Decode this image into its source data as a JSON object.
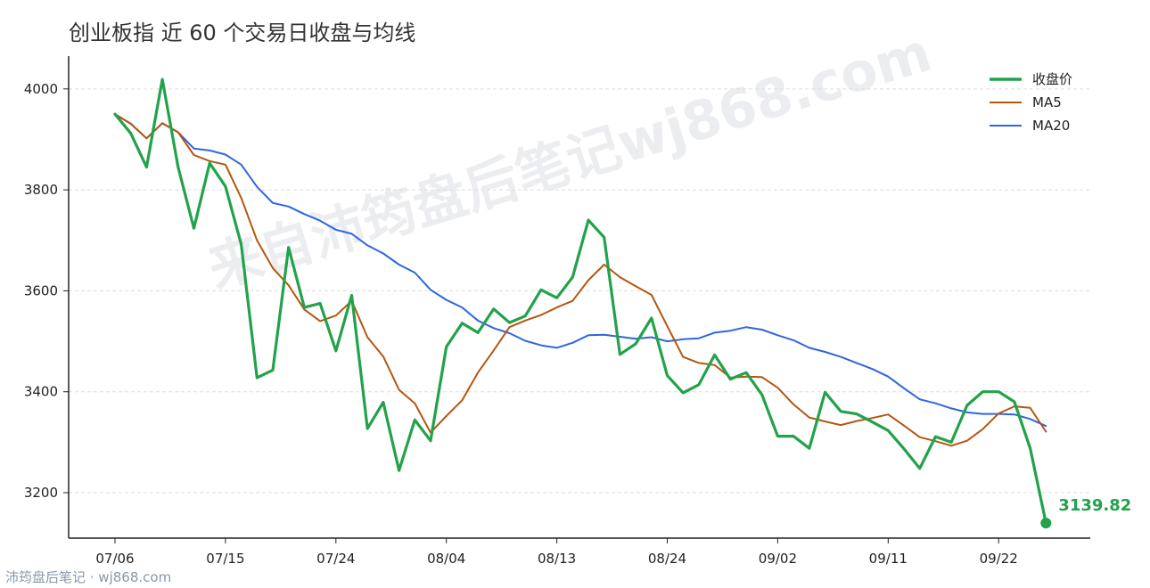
{
  "colors": {
    "close": "#22a24a",
    "ma5": "#b5560f",
    "ma20": "#2f66dd"
  },
  "watermark": "来自沛筠盘后笔记wj868.com",
  "credit": "沛筠盘后笔记 · wj868.com",
  "chart_data": {
    "type": "line",
    "title": "创业板指 近 60 个交易日收盘与均线",
    "xlabel": "",
    "ylabel": "",
    "ylim": [
      3110,
      4065
    ],
    "yticks": [
      3200,
      3400,
      3600,
      3800,
      4000
    ],
    "xtick_labels": [
      "07/06",
      "07/15",
      "07/24",
      "08/04",
      "08/13",
      "08/24",
      "09/02",
      "09/11",
      "09/22"
    ],
    "xtick_index": [
      0,
      7,
      14,
      21,
      28,
      35,
      42,
      49,
      56
    ],
    "grid": "horizontal",
    "legend_position": "top-right",
    "last_value_label": "3139.82",
    "series": [
      {
        "name": "收盘价",
        "key": "close",
        "values": [
          3950,
          3912,
          3845,
          4019,
          3845,
          3724,
          3853,
          3807,
          3692,
          3428,
          3443,
          3686,
          3567,
          3575,
          3481,
          3591,
          3327,
          3379,
          3244,
          3344,
          3303,
          3489,
          3536,
          3517,
          3564,
          3537,
          3550,
          3602,
          3586,
          3627,
          3740,
          3706,
          3474,
          3495,
          3546,
          3432,
          3398,
          3414,
          3473,
          3425,
          3438,
          3394,
          3312,
          3312,
          3288,
          3399,
          3361,
          3356,
          3340,
          3323,
          3287,
          3248,
          3311,
          3300,
          3373,
          3400,
          3400,
          3380,
          3288,
          3139.82
        ]
      },
      {
        "name": "MA5",
        "key": "ma5",
        "values": [
          3950,
          3931,
          3902,
          3932,
          3914,
          3869,
          3857,
          3850,
          3784,
          3700,
          3645,
          3611,
          3563,
          3540,
          3551,
          3580,
          3508,
          3470,
          3404,
          3377,
          3319,
          3352,
          3383,
          3438,
          3482,
          3528,
          3541,
          3552,
          3567,
          3580,
          3621,
          3652,
          3627,
          3609,
          3592,
          3530,
          3469,
          3457,
          3453,
          3428,
          3430,
          3429,
          3408,
          3375,
          3349,
          3341,
          3334,
          3342,
          3348,
          3355,
          3333,
          3310,
          3302,
          3293,
          3303,
          3326,
          3357,
          3371,
          3368,
          3321
        ]
      },
      {
        "name": "MA20",
        "key": "ma20",
        "values": [
          3950,
          3931,
          3902,
          3932,
          3914,
          3882,
          3878,
          3870,
          3850,
          3806,
          3774,
          3767,
          3752,
          3739,
          3721,
          3713,
          3690,
          3674,
          3652,
          3636,
          3602,
          3582,
          3567,
          3541,
          3526,
          3516,
          3501,
          3492,
          3487,
          3497,
          3512,
          3513,
          3509,
          3505,
          3508,
          3500,
          3504,
          3506,
          3517,
          3521,
          3528,
          3523,
          3512,
          3502,
          3487,
          3479,
          3469,
          3457,
          3445,
          3430,
          3407,
          3385,
          3377,
          3367,
          3359,
          3356,
          3356,
          3355,
          3346,
          3332
        ]
      }
    ]
  }
}
